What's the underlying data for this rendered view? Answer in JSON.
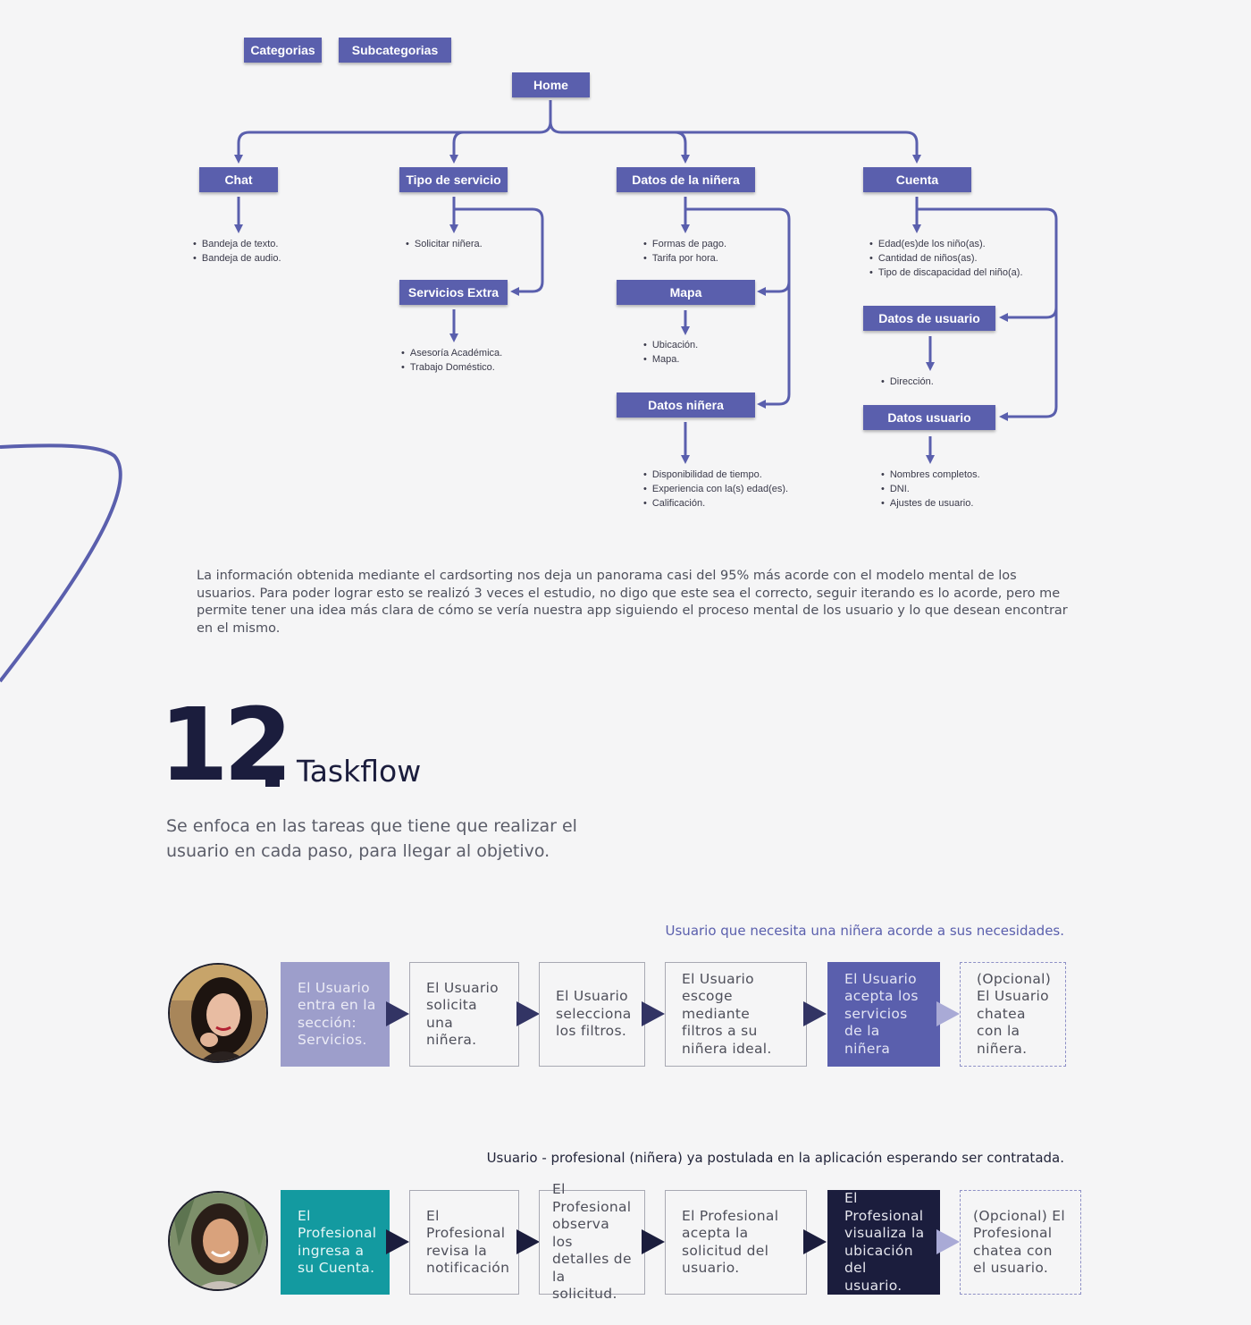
{
  "sitemap": {
    "legend": {
      "categories": "Categorias",
      "subcategories": "Subcategorias"
    },
    "home": "Home",
    "chat": {
      "label": "Chat",
      "items": [
        "Bandeja de texto.",
        "Bandeja de audio."
      ]
    },
    "tipo_servicio": {
      "label": "Tipo de servicio",
      "items": [
        "Solicitar niñera."
      ]
    },
    "servicios_extra": {
      "label": "Servicios Extra",
      "items": [
        "Asesoría Académica.",
        "Trabajo Doméstico."
      ]
    },
    "datos_ninera": {
      "label": "Datos de la niñera",
      "items": [
        "Formas de pago.",
        "Tarifa por hora."
      ]
    },
    "mapa": {
      "label": "Mapa",
      "items": [
        "Ubicación.",
        "Mapa."
      ]
    },
    "datos_ninera_sub": {
      "label": "Datos niñera",
      "items": [
        "Disponibilidad de tiempo.",
        "Experiencia con la(s) edad(es).",
        "Calificación."
      ]
    },
    "cuenta": {
      "label": "Cuenta",
      "items": [
        "Edad(es)de los niño(as).",
        "Cantidad de niños(as).",
        "Tipo de discapacidad del niño(a)."
      ]
    },
    "datos_de_usuario": {
      "label": "Datos de usuario",
      "items": [
        "Dirección."
      ]
    },
    "datos_usuario": {
      "label": "Datos usuario",
      "items": [
        "Nombres completos.",
        "DNI.",
        "Ajustes de usuario."
      ]
    }
  },
  "summary": "La información obtenida mediante el cardsorting nos deja un panorama casi del 95% más acorde con el modelo mental de los usuarios. Para poder lograr esto se realizó 3 veces el estudio, no digo que este sea el correcto, seguir iterando es lo acorde, pero me permite tener una idea más clara de cómo se vería nuestra app siguiendo el proceso mental de los usuario y lo que desean encontrar en el mismo.",
  "section": {
    "number": "12",
    "title": "Taskflow",
    "subtitle": "Se enfoca en las tareas que tiene que realizar el usuario en cada paso, para llegar al objetivo."
  },
  "flows": [
    {
      "label": "Usuario que necesita una niñera acorde a sus necesidades.",
      "label_color": "#5a5fad",
      "steps": [
        "El Usuario entra en la sección: Servicios.",
        "El Usuario solicita una niñera.",
        "El Usuario selecciona los filtros.",
        "El Usuario escoge mediante filtros a su niñera ideal.",
        "El Usuario acepta los servicios de la niñera",
        "(Opcional) El Usuario chatea con la niñera."
      ]
    },
    {
      "label": "Usuario - profesional (niñera) ya postulada en la aplicación esperando ser contratada.",
      "label_color": "#23253a",
      "steps": [
        "El Profesional ingresa a su Cuenta.",
        "El Profesional revisa la notificación",
        "El Profesional observa los detalles de la solicitud.",
        "El Profesional acepta la solicitud del usuario.",
        "El Profesional visualiza la ubicación del usuario.",
        "(Opcional) El Profesional chatea con el usuario."
      ]
    }
  ],
  "colors": {
    "node": "#5a5fad",
    "connector": "#5a5fad",
    "flow1_start": "#9d9ecb",
    "flow1_highlight": "#5a5fad",
    "flow2_start": "#139aa0",
    "flow2_highlight": "#1b1d3d",
    "arrow_light": "#a9aad6"
  }
}
